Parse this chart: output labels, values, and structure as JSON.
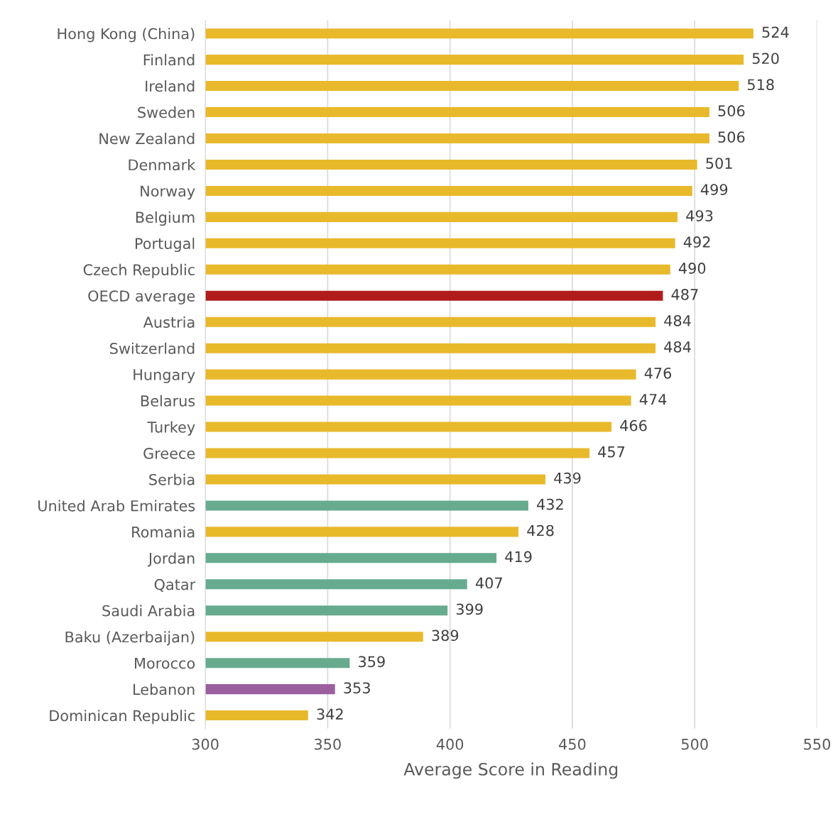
{
  "chart_data": {
    "type": "bar",
    "orientation": "horizontal",
    "xlabel": "Average Score in Reading",
    "categories": [
      "Hong Kong (China)",
      "Finland",
      "Ireland",
      "Sweden",
      "New Zealand",
      "Denmark",
      "Norway",
      "Belgium",
      "Portugal",
      "Czech Republic",
      "OECD average",
      "Austria",
      "Switzerland",
      "Hungary",
      "Belarus",
      "Turkey",
      "Greece",
      "Serbia",
      "United Arab Emirates",
      "Romania",
      "Jordan",
      "Qatar",
      "Saudi Arabia",
      "Baku (Azerbaijan)",
      "Morocco",
      "Lebanon",
      "Dominican Republic"
    ],
    "values": [
      524,
      520,
      518,
      506,
      506,
      501,
      499,
      493,
      492,
      490,
      487,
      484,
      484,
      476,
      474,
      466,
      457,
      439,
      432,
      428,
      419,
      407,
      399,
      389,
      359,
      353,
      342
    ],
    "colors": [
      "#e8b92b",
      "#e8b92b",
      "#e8b92b",
      "#e8b92b",
      "#e8b92b",
      "#e8b92b",
      "#e8b92b",
      "#e8b92b",
      "#e8b92b",
      "#e8b92b",
      "#b01c1c",
      "#e8b92b",
      "#e8b92b",
      "#e8b92b",
      "#e8b92b",
      "#e8b92b",
      "#e8b92b",
      "#e8b92b",
      "#67ab8e",
      "#e8b92b",
      "#67ab8e",
      "#67ab8e",
      "#67ab8e",
      "#e8b92b",
      "#67ab8e",
      "#9b5fa0",
      "#e8b92b"
    ],
    "xlim": [
      300,
      550
    ],
    "xticks": [
      300,
      350,
      400,
      450,
      500,
      550
    ],
    "grid": "x",
    "data_labels": true,
    "legend": false
  }
}
